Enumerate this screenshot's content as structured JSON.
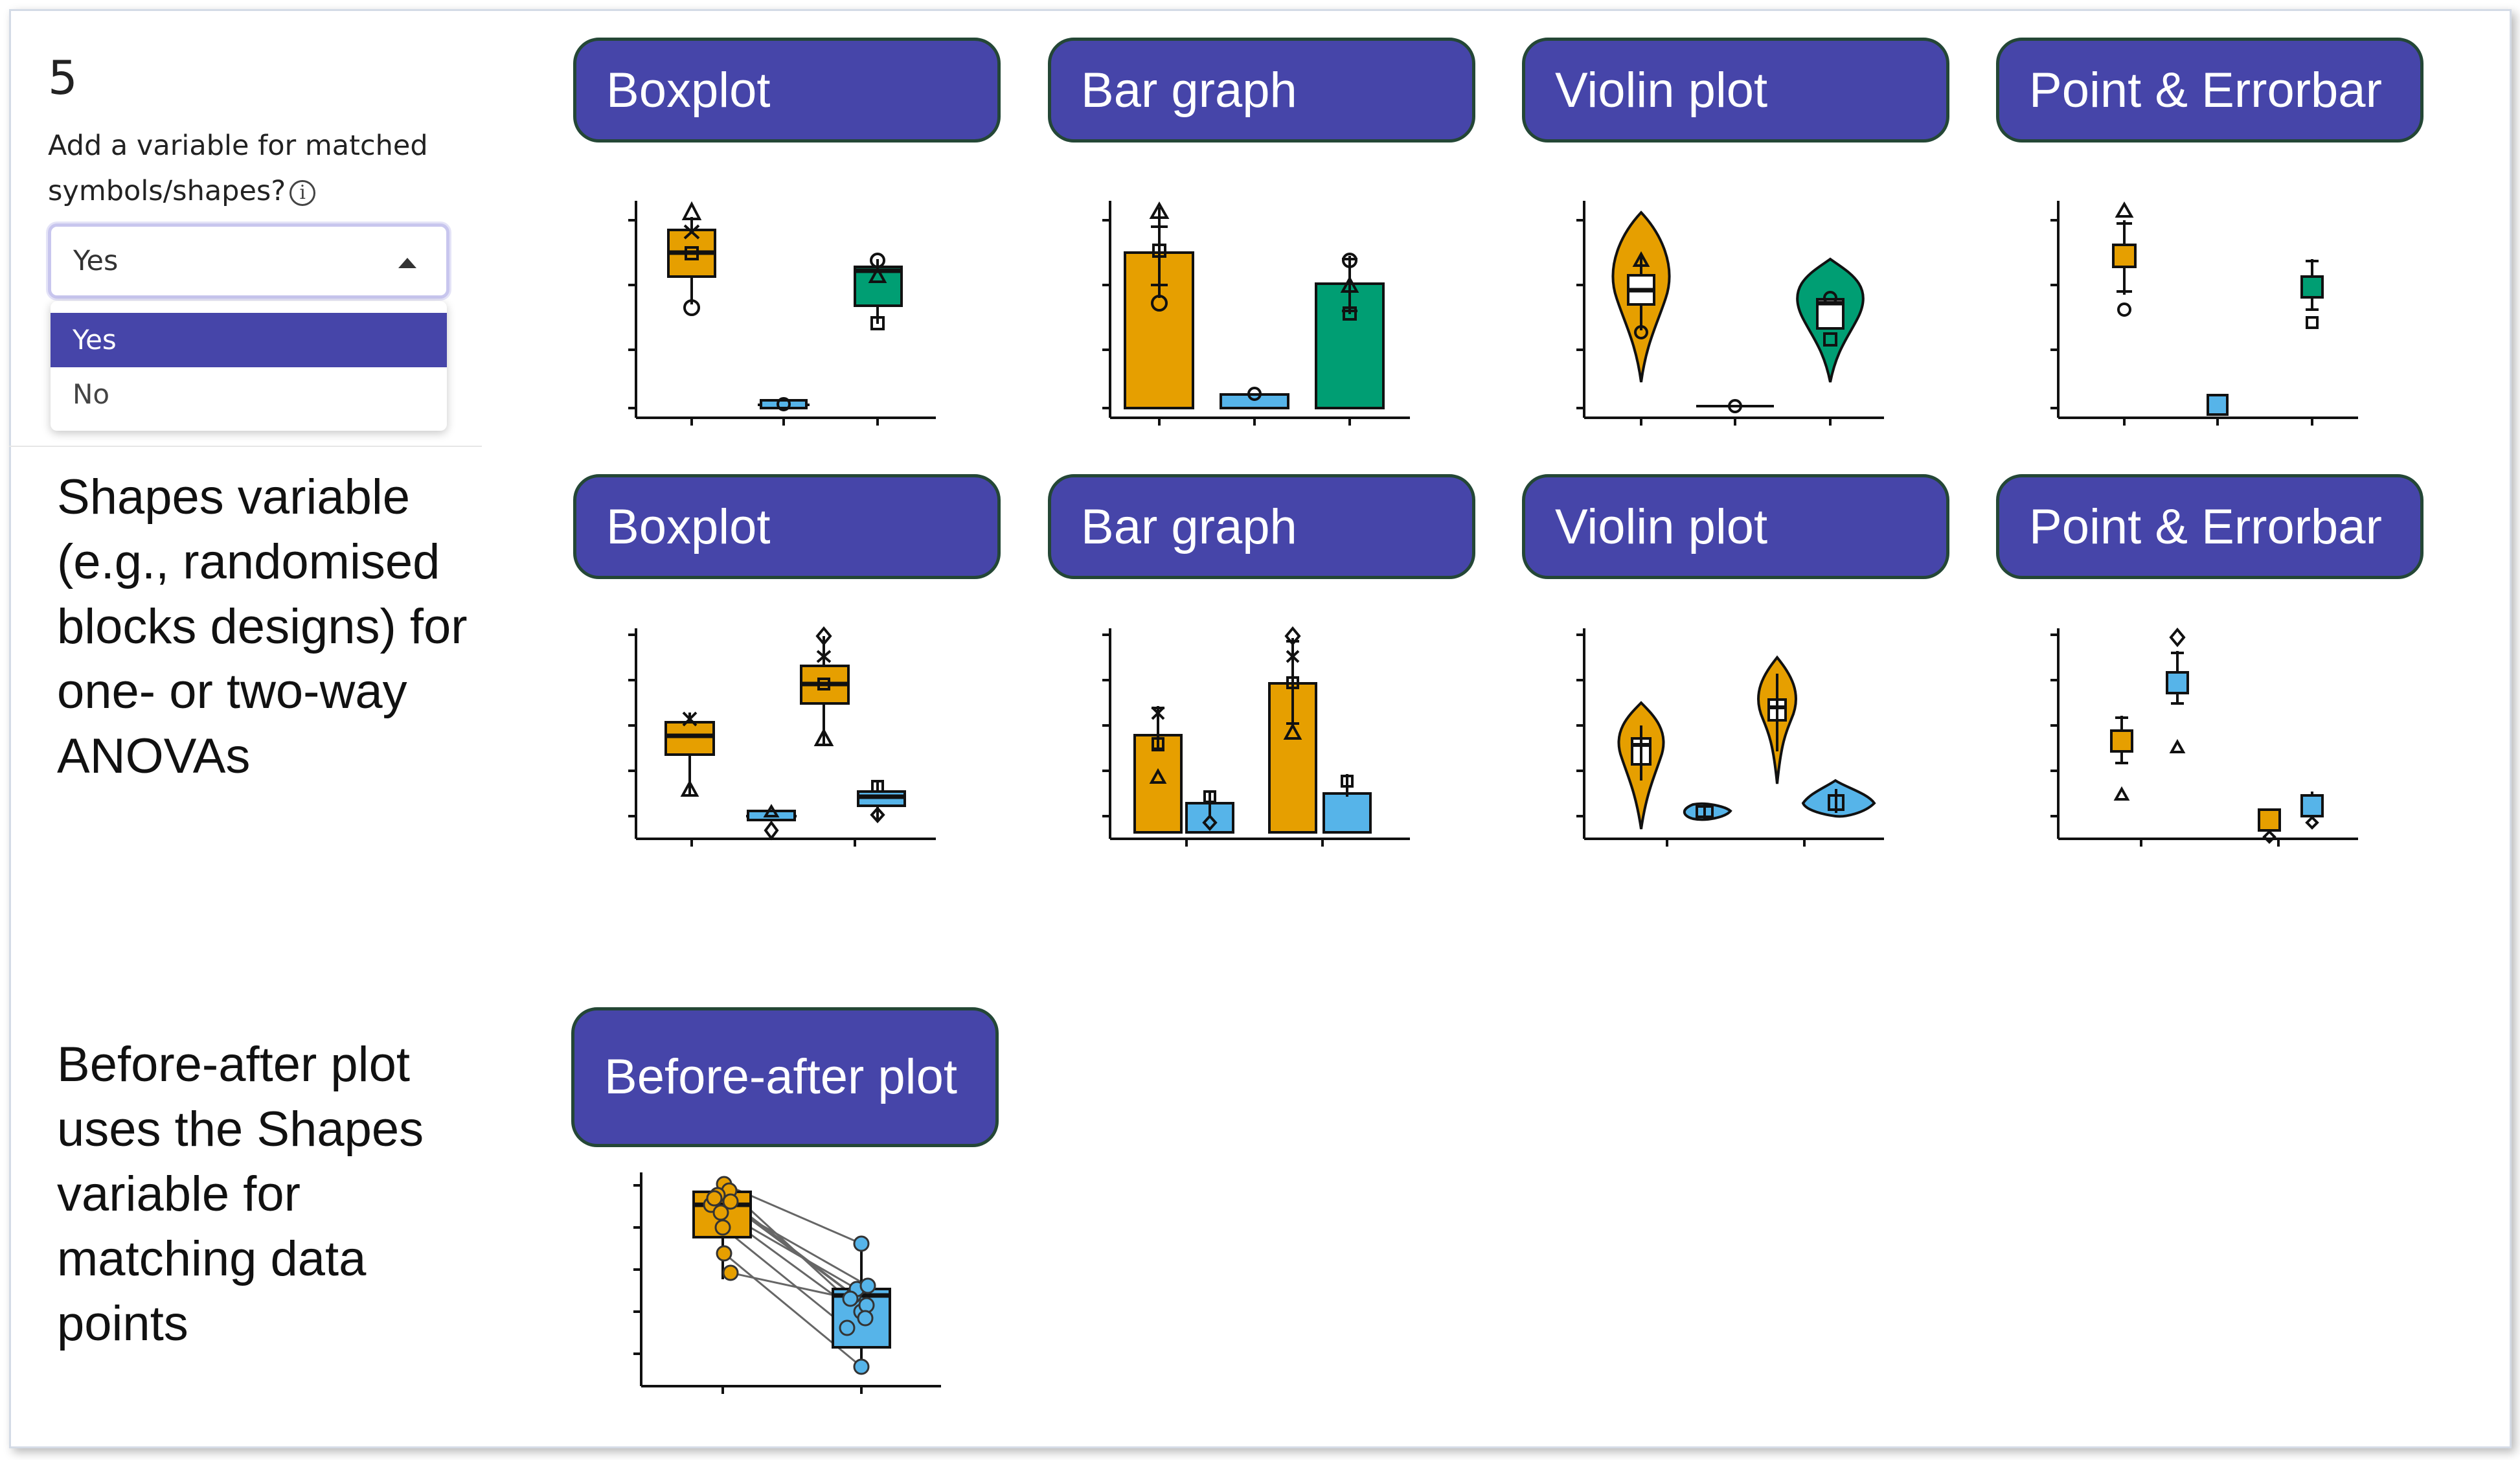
{
  "step_number": "5",
  "question": {
    "label": "Add a variable for matched symbols/shapes?",
    "info_icon": "info-icon"
  },
  "dropdown": {
    "value": "Yes",
    "options": [
      "Yes",
      "No"
    ],
    "selected_option": "Yes"
  },
  "shapes_description": {
    "lines": [
      "Shapes variable",
      "(e.g., randomised",
      "blocks designs) for",
      "one- or two-way",
      "ANOVAs"
    ]
  },
  "before_after_description": {
    "lines": [
      "Before-after plot",
      "uses the Shapes",
      "variable for",
      "matching data",
      "points"
    ]
  },
  "row1_buttons": [
    "Boxplot",
    "Bar graph",
    "Violin plot",
    "Point & Errorbar"
  ],
  "row2_buttons": [
    "Boxplot",
    "Bar graph",
    "Violin plot",
    "Point & Errorbar"
  ],
  "row3_buttons": [
    "Before-after plot"
  ],
  "colors": {
    "button_fill": "#4645a9",
    "button_border": "#244736",
    "group_orange": "#e69f00",
    "group_blue": "#56b4e9",
    "group_green": "#009e73",
    "selected_option_bg": "#4645a9"
  }
}
